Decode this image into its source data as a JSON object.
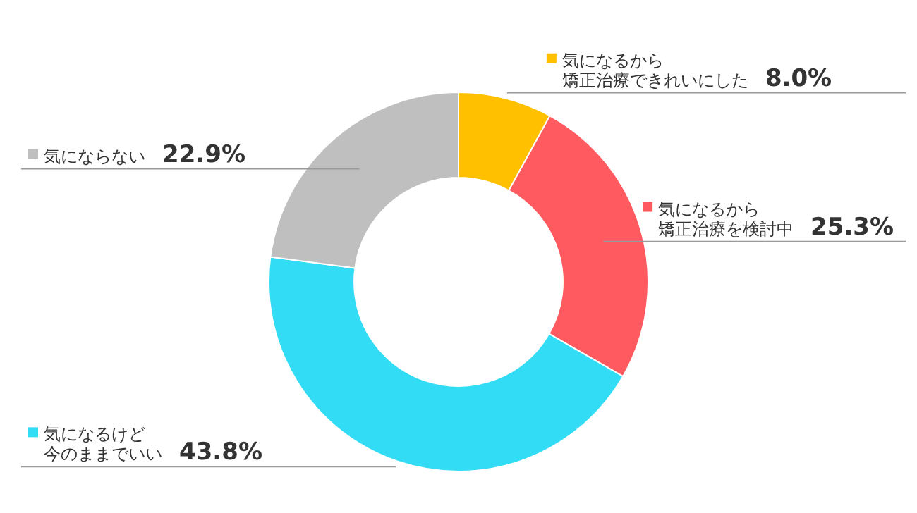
{
  "chart_data": {
    "type": "donut",
    "categories": [
      "気になるから矯正治療できれいにした",
      "気になるから矯正治療を検討中",
      "気になるけど今のままでいい",
      "気にならない"
    ],
    "values": [
      8.0,
      25.3,
      43.8,
      22.9
    ],
    "value_labels": [
      "8.0%",
      "25.3%",
      "43.8%",
      "22.9%"
    ],
    "colors": [
      "#ffc000",
      "#ff5a5f",
      "#33dcf5",
      "#bfbfbf"
    ],
    "legend": true
  }
}
